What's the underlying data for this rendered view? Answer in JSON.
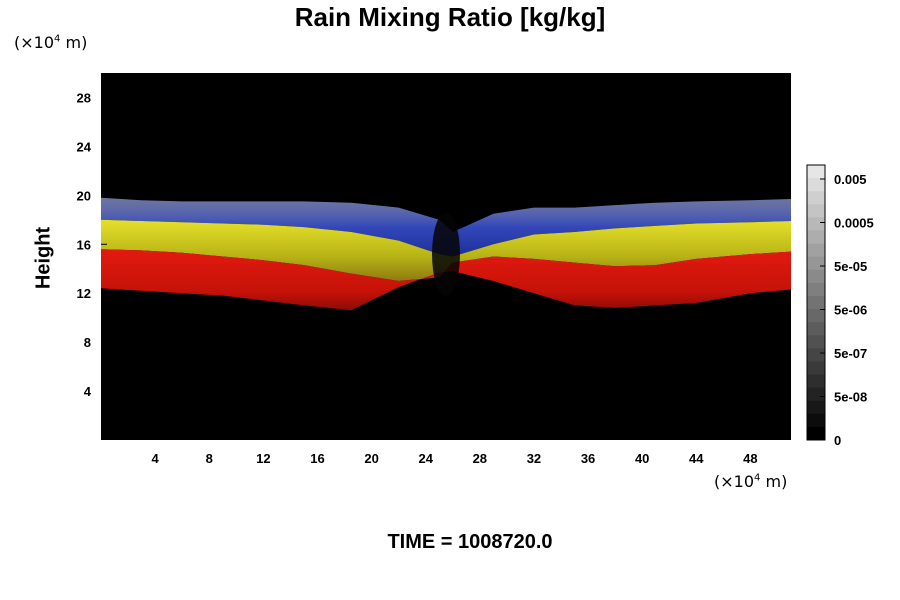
{
  "title": "Rain Mixing Ratio [kg/kg]",
  "y_unit": {
    "prefix": "(×10",
    "exp": "4",
    "suffix": " m)"
  },
  "x_unit": {
    "prefix": "(×10",
    "exp": "4",
    "suffix": " m)"
  },
  "time_label": "TIME = 1008720.0",
  "chart_data": {
    "type": "heatmap",
    "title": "Rain Mixing Ratio [kg/kg]",
    "xlabel": "",
    "ylabel": "Height",
    "xlim": [
      0,
      51
    ],
    "ylim": [
      0,
      30
    ],
    "x_ticks": [
      4,
      8,
      12,
      16,
      20,
      24,
      28,
      32,
      36,
      40,
      44,
      48
    ],
    "y_ticks": [
      4,
      8,
      12,
      16,
      20,
      24,
      28
    ],
    "colorbar": {
      "scale": "log",
      "labels": [
        "0.005",
        "0.0005",
        "5e-05",
        "5e-06",
        "5e-07",
        "5e-08",
        "0"
      ]
    },
    "bands": [
      {
        "color": "#1e3ec8",
        "top": [
          19.8,
          19.6,
          19.5,
          19.5,
          19.5,
          19.5,
          19.4,
          19.0,
          18.0,
          17.0,
          18.5,
          19.0,
          19.0,
          19.2,
          19.4,
          19.5,
          19.6,
          19.7
        ],
        "bottom": [
          18.0,
          17.9,
          17.8,
          17.7,
          17.6,
          17.4,
          17.0,
          16.3,
          15.2,
          15.0,
          16.0,
          16.8,
          17.0,
          17.3,
          17.5,
          17.7,
          17.8,
          17.9
        ]
      },
      {
        "color": "#d4d41e",
        "top": [
          18.0,
          17.9,
          17.8,
          17.7,
          17.6,
          17.4,
          17.0,
          16.3,
          15.2,
          15.0,
          16.0,
          16.8,
          17.0,
          17.3,
          17.5,
          17.7,
          17.8,
          17.9
        ],
        "bottom": [
          15.6,
          15.5,
          15.3,
          15.0,
          14.7,
          14.3,
          13.6,
          13.0,
          13.3,
          14.5,
          15.0,
          14.8,
          14.5,
          14.2,
          14.3,
          14.8,
          15.2,
          15.4
        ]
      },
      {
        "color": "#d21a10",
        "top": [
          15.6,
          15.5,
          15.3,
          15.0,
          14.7,
          14.3,
          13.6,
          13.0,
          13.3,
          14.5,
          15.0,
          14.8,
          14.5,
          14.2,
          14.3,
          14.8,
          15.2,
          15.4
        ],
        "bottom": [
          12.4,
          12.2,
          12.0,
          11.8,
          11.4,
          11.0,
          10.6,
          12.5,
          13.7,
          13.8,
          13.0,
          12.0,
          11.0,
          10.8,
          11.0,
          11.2,
          12.0,
          12.3
        ]
      }
    ],
    "band_x": [
      0,
      3,
      6,
      9,
      12,
      15,
      18.5,
      22,
      25,
      26,
      29,
      32,
      35,
      38,
      41,
      44,
      48,
      51
    ]
  }
}
